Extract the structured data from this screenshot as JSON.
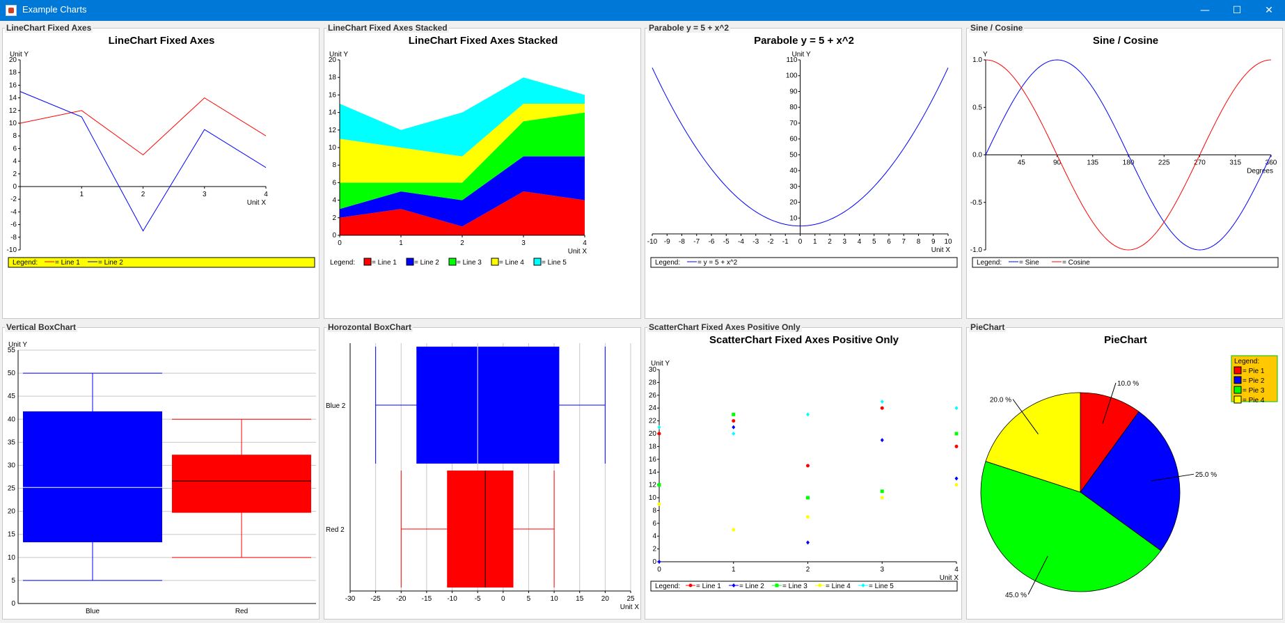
{
  "window": {
    "title": "Example Charts",
    "minimize": "—",
    "maximize": "☐",
    "close": "✕"
  },
  "colors": {
    "red": "#ff0000",
    "blue": "#0000ff",
    "green": "#00ff00",
    "yellow": "#ffff00",
    "cyan": "#00ffff",
    "legend_yellow": "#ffff00",
    "pie_legend_bg": "#ffc800"
  },
  "panels": [
    {
      "title": "LineChart Fixed Axes"
    },
    {
      "title": "LineChart Fixed Axes Stacked"
    },
    {
      "title": "Parabole y = 5 + x^2"
    },
    {
      "title": "Sine / Cosine"
    },
    {
      "title": "Vertical BoxChart"
    },
    {
      "title": "Horozontal BoxChart"
    },
    {
      "title": "ScatterChart Fixed Axes Positive Only"
    },
    {
      "title": "PieChart"
    }
  ],
  "legend_prefix": "Legend:",
  "chart_data": [
    {
      "type": "line",
      "title": "LineChart Fixed Axes",
      "xlabel": "Unit X",
      "ylabel": "Unit Y",
      "x": [
        0,
        1,
        2,
        3,
        4
      ],
      "xticks": [
        1,
        2,
        3,
        4
      ],
      "ylim": [
        -10,
        20
      ],
      "yticks": [
        -10,
        -8,
        -6,
        -4,
        -2,
        0,
        2,
        4,
        6,
        8,
        10,
        12,
        14,
        16,
        18,
        20
      ],
      "series": [
        {
          "name": "= Line 1",
          "values": [
            10,
            12,
            5,
            14,
            8
          ],
          "color": "#ff0000"
        },
        {
          "name": "= Line 2",
          "values": [
            15,
            11,
            -7,
            9,
            3
          ],
          "color": "#0000ff"
        }
      ],
      "legend_position": "bottom"
    },
    {
      "type": "area",
      "title": "LineChart Fixed Axes Stacked",
      "xlabel": "Unit X",
      "ylabel": "Unit Y",
      "x": [
        0,
        1,
        2,
        3,
        4
      ],
      "xticks": [
        0,
        1,
        2,
        3,
        4
      ],
      "ylim": [
        0,
        20
      ],
      "yticks": [
        0,
        2,
        4,
        6,
        8,
        10,
        12,
        14,
        16,
        18,
        20
      ],
      "stacked": true,
      "series": [
        {
          "name": "= Line 1",
          "values": [
            2,
            3,
            1,
            5,
            4
          ],
          "color": "#ff0000"
        },
        {
          "name": "= Line 2",
          "values": [
            1,
            2,
            3,
            4,
            5
          ],
          "color": "#0000ff"
        },
        {
          "name": "= Line 3",
          "values": [
            3,
            1,
            2,
            4,
            5
          ],
          "color": "#00ff00"
        },
        {
          "name": "= Line 4",
          "values": [
            5,
            4,
            3,
            2,
            1
          ],
          "color": "#ffff00"
        },
        {
          "name": "= Line 5",
          "values": [
            4,
            2,
            5,
            3,
            1
          ],
          "color": "#00ffff"
        }
      ],
      "legend_position": "bottom"
    },
    {
      "type": "line",
      "title": "Parabole y = 5 + x^2",
      "xlabel": "Unit X",
      "ylabel": "Unit Y",
      "xlim": [
        -10,
        10
      ],
      "xticks": [
        -10,
        -9,
        -8,
        -7,
        -6,
        -5,
        -4,
        -3,
        -2,
        -1,
        0,
        1,
        2,
        3,
        4,
        5,
        6,
        7,
        8,
        9,
        10
      ],
      "ylim": [
        0,
        110
      ],
      "yticks": [
        10,
        20,
        30,
        40,
        50,
        60,
        70,
        80,
        90,
        100,
        110
      ],
      "function": "y = 5 + x^2",
      "series": [
        {
          "name": "= y = 5 + x^2",
          "color": "#0000ff"
        }
      ],
      "legend_position": "bottom"
    },
    {
      "type": "line",
      "title": "Sine / Cosine",
      "xlabel": "Degrees",
      "ylabel": "Y",
      "xlim": [
        0,
        360
      ],
      "xticks": [
        45,
        90,
        135,
        180,
        225,
        270,
        315,
        360
      ],
      "ylim": [
        -1,
        1
      ],
      "yticks": [
        "-1.0",
        "-0.5",
        "0.0",
        "0.5",
        "1.0"
      ],
      "series": [
        {
          "name": "= Sine",
          "function": "sin",
          "color": "#0000ff"
        },
        {
          "name": "= Cosine",
          "function": "cos",
          "color": "#ff0000"
        }
      ],
      "legend_position": "bottom"
    },
    {
      "type": "box",
      "title": "",
      "orientation": "vertical",
      "ylabel": "Unit Y",
      "ylim": [
        0,
        55
      ],
      "yticks": [
        0,
        5,
        10,
        15,
        20,
        25,
        30,
        35,
        40,
        45,
        50,
        55
      ],
      "categories": [
        "Blue",
        "Red"
      ],
      "boxes": [
        {
          "name": "Blue",
          "min": 5,
          "q1": 13.3,
          "median": 25.2,
          "q3": 41.7,
          "max": 50,
          "color": "#0000ff",
          "median_color": "#ffffff"
        },
        {
          "name": "Red",
          "min": 10,
          "q1": 19.7,
          "median": 26.6,
          "q3": 32.3,
          "max": 40,
          "color": "#ff0000",
          "median_color": "#000000"
        }
      ]
    },
    {
      "type": "box",
      "title": "",
      "orientation": "horizontal",
      "xlabel": "Unit X",
      "xlim": [
        -30,
        25
      ],
      "xticks": [
        -30,
        -25,
        -20,
        -15,
        -10,
        -5,
        0,
        5,
        10,
        15,
        20,
        25
      ],
      "categories": [
        "Blue 2",
        "Red 2"
      ],
      "boxes": [
        {
          "name": "Blue 2",
          "min": -25,
          "q1": -17,
          "median": -5,
          "q3": 11,
          "max": 20,
          "color": "#0000ff",
          "median_color": "#ffffff"
        },
        {
          "name": "Red 2",
          "min": -20,
          "q1": -11,
          "median": -3.5,
          "q3": 2,
          "max": 10,
          "color": "#ff0000",
          "median_color": "#000000"
        }
      ]
    },
    {
      "type": "scatter",
      "title": "ScatterChart Fixed Axes Positive Only",
      "xlabel": "Unit X",
      "ylabel": "Unit Y",
      "xlim": [
        0,
        4
      ],
      "xticks": [
        0,
        1,
        2,
        3,
        4
      ],
      "ylim": [
        0,
        30
      ],
      "yticks": [
        0,
        2,
        4,
        6,
        8,
        10,
        12,
        14,
        16,
        18,
        20,
        22,
        24,
        26,
        28,
        30
      ],
      "series": [
        {
          "name": "= Line 1",
          "marker": "circle",
          "color": "#ff0000",
          "x": [
            0,
            1,
            2,
            3,
            4
          ],
          "y": [
            20,
            22,
            15,
            24,
            18
          ]
        },
        {
          "name": "= Line 2",
          "marker": "diamond",
          "color": "#0000ff",
          "x": [
            0,
            1,
            2,
            3,
            4
          ],
          "y": [
            0,
            21,
            3,
            19,
            13
          ]
        },
        {
          "name": "= Line 3",
          "marker": "square",
          "color": "#00ff00",
          "x": [
            0,
            1,
            2,
            3,
            4
          ],
          "y": [
            12,
            23,
            10,
            11,
            20
          ]
        },
        {
          "name": "= Line 4",
          "marker": "circle",
          "color": "#ffff00",
          "x": [
            0,
            1,
            2,
            3,
            4
          ],
          "y": [
            9,
            5,
            7,
            10,
            12
          ]
        },
        {
          "name": "= Line 5",
          "marker": "diamond",
          "color": "#00ffff",
          "x": [
            0,
            1,
            2,
            3,
            4
          ],
          "y": [
            21,
            20,
            23,
            25,
            24
          ]
        }
      ],
      "legend_position": "bottom"
    },
    {
      "type": "pie",
      "title": "PieChart",
      "slices": [
        {
          "name": "= Pie 1",
          "value": 10.0,
          "label": "10.0 %",
          "color": "#ff0000"
        },
        {
          "name": "= Pie 2",
          "value": 25.0,
          "label": "25.0 %",
          "color": "#0000ff"
        },
        {
          "name": "= Pie 3",
          "value": 45.0,
          "label": "45.0 %",
          "color": "#00ff00"
        },
        {
          "name": "= Pie 4",
          "value": 20.0,
          "label": "20.0 %",
          "color": "#ffff00"
        }
      ],
      "legend_title": "Legend:",
      "legend_position": "top-right"
    }
  ]
}
